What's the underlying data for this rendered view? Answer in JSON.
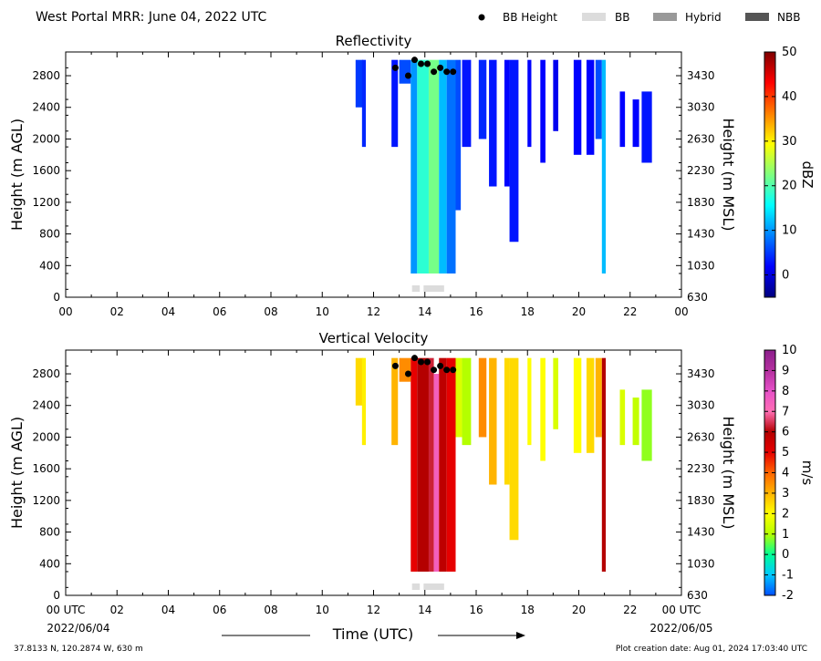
{
  "header": {
    "title": "West Portal MRR:  June 04, 2022 UTC",
    "legend": [
      {
        "label": "BB Height",
        "kind": "dot",
        "color": "#000000"
      },
      {
        "label": "BB",
        "kind": "patch",
        "color": "#dcdcdc"
      },
      {
        "label": "Hybrid",
        "kind": "patch",
        "color": "#999999"
      },
      {
        "label": "NBB",
        "kind": "patch",
        "color": "#555555"
      }
    ]
  },
  "footer": {
    "location": "37.8133 N, 120.2874 W, 630 m",
    "creation": "Plot creation date: Aug 01, 2024 17:03:40 UTC",
    "xlabel": "Time (UTC)",
    "start_tick": "00 UTC",
    "end_tick": "00 UTC",
    "start_date": "2022/06/04",
    "end_date": "2022/06/05"
  },
  "chart_data": [
    {
      "type": "heatmap",
      "title": "Reflectivity",
      "ylabel": "Height (m AGL)",
      "ylabel_right": "Height (m MSL)",
      "xlim": [
        0,
        24
      ],
      "ylim": [
        0,
        3100
      ],
      "xticks": [
        "00",
        "02",
        "04",
        "06",
        "08",
        "10",
        "12",
        "14",
        "16",
        "18",
        "20",
        "22",
        "00"
      ],
      "yticks": [
        0,
        400,
        800,
        1200,
        1600,
        2000,
        2400,
        2800
      ],
      "yticks_right": [
        "630",
        "1030",
        "1430",
        "1830",
        "2230",
        "2630",
        "3030",
        "3430"
      ],
      "colorbar": {
        "label": "dBZ",
        "min": -5,
        "max": 50,
        "ticks": [
          0,
          10,
          20,
          30,
          40,
          50
        ],
        "stops": [
          "#00007f",
          "#0000ff",
          "#007fff",
          "#00ffff",
          "#7fff7f",
          "#ffff00",
          "#ff7f00",
          "#ff0000",
          "#7f0000"
        ]
      },
      "bright_band": [
        {
          "start": 13.5,
          "end": 13.8,
          "type": "BB"
        },
        {
          "start": 13.95,
          "end": 14.75,
          "type": "BB"
        }
      ],
      "bb_height": [
        [
          12.85,
          2900
        ],
        [
          13.35,
          2800
        ],
        [
          13.6,
          3000
        ],
        [
          13.85,
          2950
        ],
        [
          14.1,
          2950
        ],
        [
          14.35,
          2850
        ],
        [
          14.6,
          2900
        ],
        [
          14.85,
          2850
        ],
        [
          15.1,
          2850
        ]
      ],
      "echoes": [
        {
          "start": 11.3,
          "end": 11.6,
          "top": 3000,
          "base": 2400,
          "v": 5
        },
        {
          "start": 11.55,
          "end": 11.7,
          "top": 3000,
          "base": 1900,
          "v": 4
        },
        {
          "start": 12.7,
          "end": 12.95,
          "top": 3000,
          "base": 1900,
          "v": 3
        },
        {
          "start": 13.0,
          "end": 13.45,
          "top": 3000,
          "base": 2700,
          "v": 6
        },
        {
          "start": 13.45,
          "end": 13.7,
          "top": 3000,
          "base": 300,
          "v": 10
        },
        {
          "start": 13.7,
          "end": 14.15,
          "top": 3000,
          "base": 300,
          "v": 18
        },
        {
          "start": 14.15,
          "end": 14.55,
          "top": 3000,
          "base": 300,
          "v": 22
        },
        {
          "start": 14.55,
          "end": 14.85,
          "top": 3000,
          "base": 300,
          "v": 12
        },
        {
          "start": 14.85,
          "end": 15.2,
          "top": 3000,
          "base": 300,
          "v": 8
        },
        {
          "start": 15.2,
          "end": 15.4,
          "top": 3000,
          "base": 1100,
          "v": 6
        },
        {
          "start": 15.45,
          "end": 15.8,
          "top": 3000,
          "base": 1900,
          "v": 3
        },
        {
          "start": 16.1,
          "end": 16.4,
          "top": 3000,
          "base": 2000,
          "v": 4
        },
        {
          "start": 16.5,
          "end": 16.8,
          "top": 3000,
          "base": 1400,
          "v": 3
        },
        {
          "start": 17.1,
          "end": 17.3,
          "top": 3000,
          "base": 1400,
          "v": 2
        },
        {
          "start": 17.3,
          "end": 17.65,
          "top": 3000,
          "base": 700,
          "v": 3
        },
        {
          "start": 18.0,
          "end": 18.15,
          "top": 3000,
          "base": 1900,
          "v": 2
        },
        {
          "start": 18.5,
          "end": 18.7,
          "top": 3000,
          "base": 1700,
          "v": 2
        },
        {
          "start": 19.0,
          "end": 19.2,
          "top": 3000,
          "base": 2100,
          "v": 1
        },
        {
          "start": 19.8,
          "end": 20.1,
          "top": 3000,
          "base": 1800,
          "v": 2
        },
        {
          "start": 20.3,
          "end": 20.6,
          "top": 3000,
          "base": 1800,
          "v": 2
        },
        {
          "start": 20.65,
          "end": 20.9,
          "top": 3000,
          "base": 2000,
          "v": 6
        },
        {
          "start": 20.9,
          "end": 21.05,
          "top": 3000,
          "base": 300,
          "v": 12
        },
        {
          "start": 21.6,
          "end": 21.8,
          "top": 2600,
          "base": 1900,
          "v": 2
        },
        {
          "start": 22.1,
          "end": 22.35,
          "top": 2500,
          "base": 1900,
          "v": 2
        },
        {
          "start": 22.45,
          "end": 22.85,
          "top": 2600,
          "base": 1700,
          "v": 3
        }
      ]
    },
    {
      "type": "heatmap",
      "title": "Vertical Velocity",
      "ylabel": "Height (m AGL)",
      "ylabel_right": "Height (m MSL)",
      "xlim": [
        0,
        24
      ],
      "ylim": [
        0,
        3100
      ],
      "xticks": [
        "00",
        "02",
        "04",
        "06",
        "08",
        "10",
        "12",
        "14",
        "16",
        "18",
        "20",
        "22",
        "00"
      ],
      "yticks": [
        0,
        400,
        800,
        1200,
        1600,
        2000,
        2400,
        2800
      ],
      "yticks_right": [
        "630",
        "1030",
        "1430",
        "1830",
        "2230",
        "2630",
        "3030",
        "3430"
      ],
      "colorbar": {
        "label": "m/s",
        "min": -2,
        "max": 10,
        "ticks": [
          -2,
          -1,
          0,
          1,
          2,
          3,
          4,
          5,
          6,
          7,
          8,
          9,
          10
        ],
        "stops": [
          "#0050ff",
          "#00c8ff",
          "#00ff96",
          "#b4ff00",
          "#ffff00",
          "#ffb400",
          "#ff6400",
          "#e60000",
          "#b40000",
          "#ff6eb4",
          "#e650c8",
          "#b4309f",
          "#8c1e8c"
        ]
      },
      "bright_band": [
        {
          "start": 13.5,
          "end": 13.8,
          "type": "BB"
        },
        {
          "start": 13.95,
          "end": 14.75,
          "type": "BB"
        }
      ],
      "bb_height": [
        [
          12.85,
          2900
        ],
        [
          13.35,
          2800
        ],
        [
          13.6,
          3000
        ],
        [
          13.85,
          2950
        ],
        [
          14.1,
          2950
        ],
        [
          14.35,
          2850
        ],
        [
          14.6,
          2900
        ],
        [
          14.85,
          2850
        ],
        [
          15.1,
          2850
        ]
      ],
      "echoes": [
        {
          "start": 11.3,
          "end": 11.6,
          "top": 3000,
          "base": 2400,
          "v": 2.5
        },
        {
          "start": 11.55,
          "end": 11.7,
          "top": 3000,
          "base": 1900,
          "v": 2.2
        },
        {
          "start": 12.7,
          "end": 12.95,
          "top": 3000,
          "base": 1900,
          "v": 3
        },
        {
          "start": 13.0,
          "end": 13.45,
          "top": 3000,
          "base": 2700,
          "v": 3.5
        },
        {
          "start": 13.45,
          "end": 13.7,
          "top": 3000,
          "base": 300,
          "v": 5
        },
        {
          "start": 13.7,
          "end": 14.15,
          "top": 3000,
          "base": 300,
          "v": 6
        },
        {
          "start": 14.15,
          "end": 14.35,
          "top": 3000,
          "base": 300,
          "v": 6.3
        },
        {
          "start": 14.35,
          "end": 14.55,
          "top": 2800,
          "base": 300,
          "v": 7.5
        },
        {
          "start": 14.55,
          "end": 14.85,
          "top": 3000,
          "base": 300,
          "v": 5.8
        },
        {
          "start": 14.85,
          "end": 15.2,
          "top": 3000,
          "base": 300,
          "v": 5
        },
        {
          "start": 15.2,
          "end": 15.45,
          "top": 3000,
          "base": 2000,
          "v": 1.5
        },
        {
          "start": 15.45,
          "end": 15.8,
          "top": 3000,
          "base": 1900,
          "v": 1
        },
        {
          "start": 16.1,
          "end": 16.4,
          "top": 3000,
          "base": 2000,
          "v": 3.5
        },
        {
          "start": 16.5,
          "end": 16.8,
          "top": 3000,
          "base": 1400,
          "v": 3
        },
        {
          "start": 17.1,
          "end": 17.3,
          "top": 3000,
          "base": 1400,
          "v": 2.5
        },
        {
          "start": 17.3,
          "end": 17.65,
          "top": 3000,
          "base": 700,
          "v": 2.5
        },
        {
          "start": 18.0,
          "end": 18.15,
          "top": 3000,
          "base": 1900,
          "v": 2
        },
        {
          "start": 18.5,
          "end": 18.7,
          "top": 3000,
          "base": 1700,
          "v": 2
        },
        {
          "start": 19.0,
          "end": 19.2,
          "top": 3000,
          "base": 2100,
          "v": 1.5
        },
        {
          "start": 19.8,
          "end": 20.1,
          "top": 3000,
          "base": 1800,
          "v": 2
        },
        {
          "start": 20.3,
          "end": 20.6,
          "top": 3000,
          "base": 1800,
          "v": 2.5
        },
        {
          "start": 20.65,
          "end": 20.9,
          "top": 3000,
          "base": 2000,
          "v": 3
        },
        {
          "start": 20.9,
          "end": 21.05,
          "top": 3000,
          "base": 300,
          "v": 6
        },
        {
          "start": 21.6,
          "end": 21.8,
          "top": 2600,
          "base": 1900,
          "v": 1.5
        },
        {
          "start": 22.1,
          "end": 22.35,
          "top": 2500,
          "base": 1900,
          "v": 1.2
        },
        {
          "start": 22.45,
          "end": 22.85,
          "top": 2600,
          "base": 1700,
          "v": 0.8
        }
      ]
    }
  ]
}
